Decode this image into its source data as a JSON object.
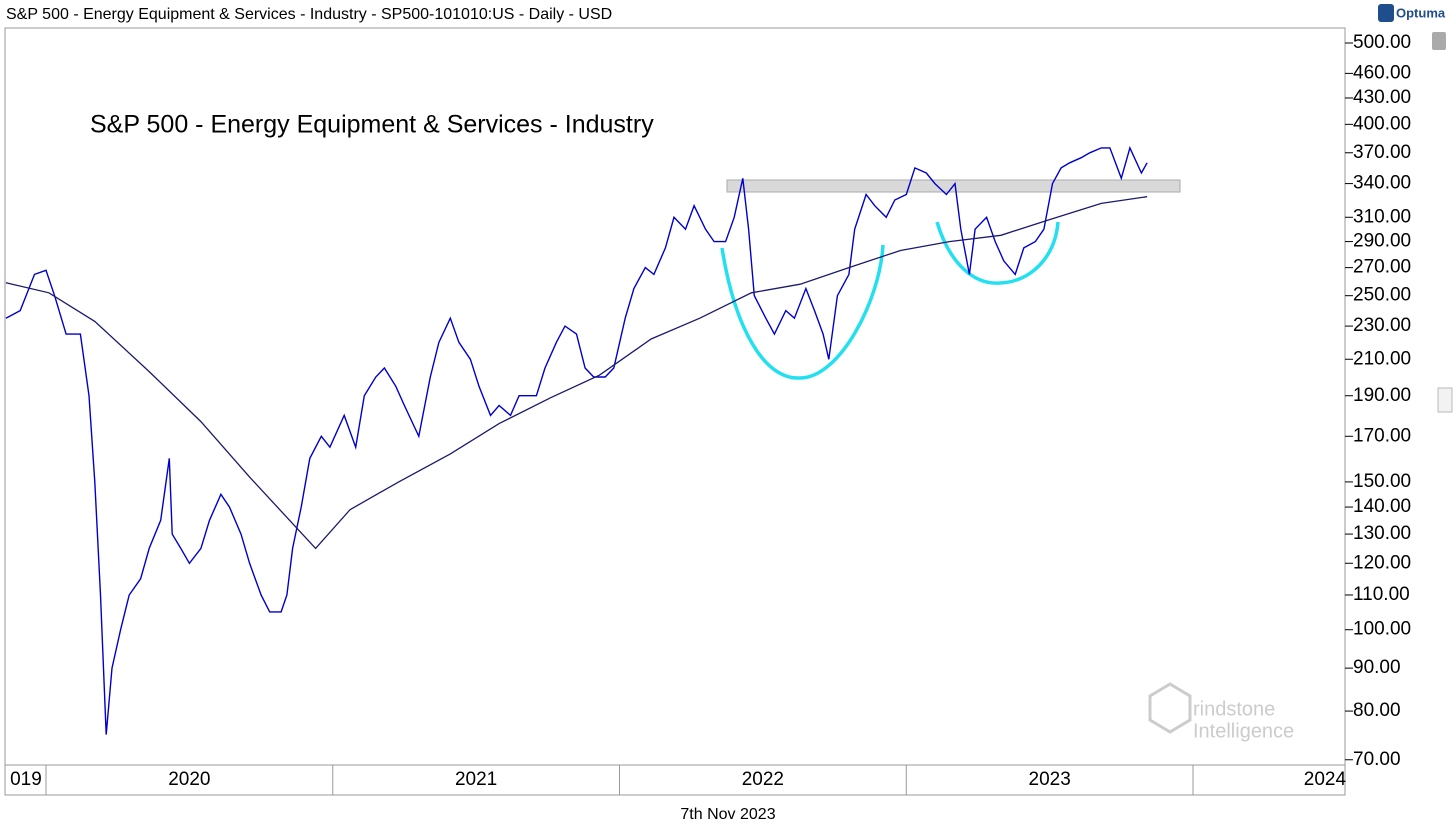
{
  "header": "S&P 500 - Energy Equipment & Services - Industry - SP500-101010:US - Daily - USD",
  "brand": "Optuma",
  "footer_date": "7th Nov 2023",
  "watermark": [
    "rindstone",
    "Intelligence"
  ],
  "chart_data": {
    "type": "line",
    "title": "S&P 500 - Energy Equipment & Services - Industry",
    "log_y": true,
    "xlim": [
      2019.857,
      2024.53
    ],
    "xticks": [
      2020,
      2021,
      2022,
      2023,
      2024
    ],
    "x_labels": [
      {
        "value": 2019.93,
        "label": "019"
      },
      {
        "value": 2020.5,
        "label": "2020"
      },
      {
        "value": 2021.5,
        "label": "2021"
      },
      {
        "value": 2022.5,
        "label": "2022"
      },
      {
        "value": 2023.5,
        "label": "2023"
      },
      {
        "value": 2024.46,
        "label": "2024"
      }
    ],
    "ylim": [
      69,
      521
    ],
    "yticks": [
      {
        "value": 500,
        "label": "500.00"
      },
      {
        "value": 460,
        "label": "460.00"
      },
      {
        "value": 430,
        "label": "430.00"
      },
      {
        "value": 400,
        "label": "400.00"
      },
      {
        "value": 370,
        "label": "370.00"
      },
      {
        "value": 340,
        "label": "340.00"
      },
      {
        "value": 310,
        "label": "310.00"
      },
      {
        "value": 290,
        "label": "290.00"
      },
      {
        "value": 270,
        "label": "270.00"
      },
      {
        "value": 250,
        "label": "250.00"
      },
      {
        "value": 230,
        "label": "230.00"
      },
      {
        "value": 210,
        "label": "210.00"
      },
      {
        "value": 190,
        "label": "190.00"
      },
      {
        "value": 170,
        "label": "170.00"
      },
      {
        "value": 150,
        "label": "150.00"
      },
      {
        "value": 140,
        "label": "140.00"
      },
      {
        "value": 130,
        "label": "130.00"
      },
      {
        "value": 120,
        "label": "120.00"
      },
      {
        "value": 110,
        "label": "110.00"
      },
      {
        "value": 100,
        "label": "100.00"
      },
      {
        "value": 90,
        "label": "90.00"
      },
      {
        "value": 80,
        "label": "80.00"
      },
      {
        "value": 70,
        "label": "70.00"
      }
    ],
    "series": [
      {
        "color": "#0000cc",
        "x": [
          2019.86,
          2019.91,
          2019.96,
          2020.0,
          2020.03,
          2020.07,
          2020.12,
          2020.15,
          2020.17,
          2020.19,
          2020.21,
          2020.23,
          2020.26,
          2020.29,
          2020.33,
          2020.36,
          2020.4,
          2020.43,
          2020.44,
          2020.47,
          2020.5,
          2020.54,
          2020.57,
          2020.61,
          2020.64,
          2020.68,
          2020.71,
          2020.75,
          2020.78,
          2020.82,
          2020.84,
          2020.86,
          2020.89,
          2020.92,
          2020.96,
          2020.99,
          2021.04,
          2021.08,
          2021.11,
          2021.15,
          2021.18,
          2021.22,
          2021.25,
          2021.3,
          2021.34,
          2021.37,
          2021.41,
          2021.44,
          2021.48,
          2021.51,
          2021.55,
          2021.58,
          2021.62,
          2021.65,
          2021.71,
          2021.74,
          2021.78,
          2021.81,
          2021.85,
          2021.88,
          2021.91,
          2021.95,
          2021.98,
          2022.02,
          2022.05,
          2022.09,
          2022.12,
          2022.16,
          2022.19,
          2022.23,
          2022.26,
          2022.3,
          2022.33,
          2022.37,
          2022.4,
          2022.43,
          2022.45,
          2022.47,
          2022.51,
          2022.54,
          2022.58,
          2022.61,
          2022.65,
          2022.68,
          2022.71,
          2022.73,
          2022.76,
          2022.8,
          2022.82,
          2022.86,
          2022.89,
          2022.93,
          2022.96,
          2023.0,
          2023.03,
          2023.07,
          2023.1,
          2023.14,
          2023.17,
          2023.19,
          2023.22,
          2023.24,
          2023.28,
          2023.31,
          2023.34,
          2023.38,
          2023.41,
          2023.45,
          2023.48,
          2023.51,
          2023.54,
          2023.57,
          2023.61,
          2023.64,
          2023.68,
          2023.71,
          2023.75,
          2023.78,
          2023.82,
          2023.84
        ],
        "values": [
          235,
          240,
          265,
          268,
          250,
          225,
          225,
          190,
          150,
          110,
          75,
          90,
          100,
          110,
          115,
          125,
          135,
          160,
          130,
          125,
          120,
          125,
          135,
          145,
          140,
          130,
          120,
          110,
          105,
          105,
          110,
          125,
          140,
          160,
          170,
          165,
          180,
          165,
          190,
          200,
          205,
          195,
          185,
          170,
          200,
          220,
          235,
          220,
          210,
          195,
          180,
          185,
          180,
          190,
          190,
          205,
          220,
          230,
          225,
          205,
          200,
          200,
          205,
          235,
          255,
          270,
          265,
          285,
          310,
          300,
          320,
          300,
          290,
          290,
          310,
          345,
          300,
          250,
          235,
          225,
          240,
          235,
          255,
          240,
          225,
          210,
          250,
          265,
          300,
          330,
          320,
          310,
          325,
          330,
          355,
          350,
          340,
          330,
          340,
          300,
          265,
          300,
          310,
          290,
          275,
          265,
          285,
          290,
          300,
          340,
          355,
          360,
          365,
          370,
          375,
          375,
          345,
          375,
          350,
          360
        ]
      },
      {
        "color": "#1a1a6e",
        "x": [
          2019.86,
          2020.01,
          2020.17,
          2020.36,
          2020.54,
          2020.71,
          2020.94,
          2021.06,
          2021.23,
          2021.41,
          2021.58,
          2021.76,
          2021.93,
          2022.11,
          2022.28,
          2022.46,
          2022.63,
          2022.8,
          2022.98,
          2023.15,
          2023.33,
          2023.5,
          2023.68,
          2023.84
        ],
        "values": [
          259,
          252,
          233,
          203,
          177,
          152,
          125,
          139,
          150,
          162,
          176,
          189,
          201,
          222,
          235,
          252,
          258,
          270,
          283,
          290,
          295,
          308,
          322,
          328
        ]
      }
    ]
  }
}
